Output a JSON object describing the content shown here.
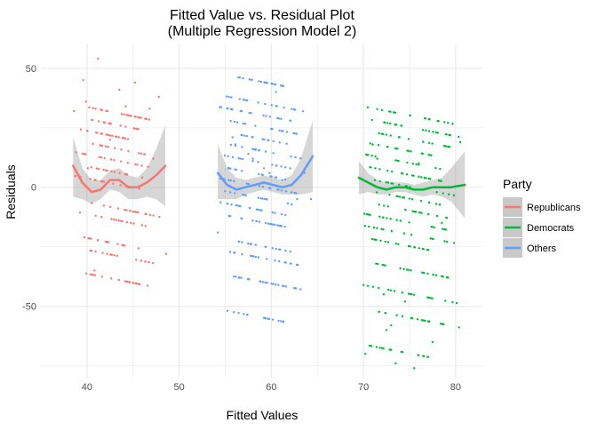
{
  "chart_data": {
    "type": "scatter",
    "title": "Fitted Value vs. Residual Plot",
    "subtitle": "(Multiple Regression Model 2)",
    "xlabel": "Fitted Values",
    "ylabel": "Residuals",
    "xlim": [
      35,
      83
    ],
    "ylim": [
      -80,
      60
    ],
    "x_ticks": [
      40,
      50,
      60,
      70,
      80
    ],
    "x_tick_labels": [
      "40",
      "50",
      "60",
      "70",
      "80"
    ],
    "y_ticks": [
      -50,
      0,
      50
    ],
    "y_tick_labels": [
      "-50",
      "0",
      "50"
    ],
    "grid": true,
    "legend": {
      "title": "Party",
      "position": "right"
    },
    "series": [
      {
        "name": "Republicans",
        "color": "#F8766D",
        "x_range": [
          38.5,
          48.5
        ],
        "band_intercepts": [
          -39,
          -29,
          -24,
          -14,
          -9,
          1,
          6,
          11,
          16,
          21,
          26,
          31
        ],
        "band_slope": -0.78,
        "extra_points": [
          [
            41.2,
            54
          ],
          [
            39.6,
            45
          ],
          [
            43.5,
            41
          ],
          [
            45.2,
            44
          ],
          [
            39.9,
            36
          ],
          [
            47.8,
            38
          ],
          [
            38.6,
            32
          ],
          [
            44.2,
            34
          ],
          [
            46.8,
            33
          ],
          [
            48.6,
            -28
          ],
          [
            40.8,
            -35
          ],
          [
            42.5,
            20
          ],
          [
            47.2,
            12
          ],
          [
            40.1,
            8
          ]
        ],
        "smooth": [
          [
            38.5,
            9
          ],
          [
            39.5,
            2
          ],
          [
            40.5,
            -2
          ],
          [
            41.5,
            -1
          ],
          [
            42.5,
            3
          ],
          [
            43.5,
            3
          ],
          [
            44.5,
            0
          ],
          [
            45.5,
            0
          ],
          [
            46.5,
            2
          ],
          [
            47.5,
            5
          ],
          [
            48.5,
            9
          ]
        ],
        "band": [
          [
            38.5,
            21,
            -4
          ],
          [
            39.5,
            8,
            -5
          ],
          [
            40.5,
            3,
            -7
          ],
          [
            41.5,
            3,
            -5
          ],
          [
            42.5,
            7,
            -1
          ],
          [
            43.5,
            8,
            -2
          ],
          [
            44.5,
            5,
            -5
          ],
          [
            45.5,
            4,
            -5
          ],
          [
            46.5,
            8,
            -4
          ],
          [
            47.5,
            16,
            -5
          ],
          [
            48.5,
            26,
            -8
          ]
        ]
      },
      {
        "name": "Democrats",
        "color": "#00BA38",
        "x_range": [
          69.5,
          81
        ],
        "band_intercepts": [
          -70,
          -55,
          -45,
          -35,
          -25,
          -20,
          -15,
          -10,
          -5,
          0,
          5,
          10,
          15,
          20,
          25,
          30
        ],
        "band_slope": -0.75,
        "extra_points": [
          [
            70.2,
            -70
          ],
          [
            73.5,
            -74
          ],
          [
            75.5,
            -76
          ],
          [
            72.5,
            -60
          ],
          [
            77.5,
            -65
          ],
          [
            73,
            -58
          ],
          [
            71,
            18
          ],
          [
            76,
            10
          ],
          [
            78.5,
            -15
          ],
          [
            80.5,
            19
          ],
          [
            74.5,
            -48
          ],
          [
            72.2,
            -45
          ],
          [
            71.5,
            12
          ]
        ],
        "smooth": [
          [
            69.5,
            4
          ],
          [
            70.5,
            2
          ],
          [
            71.5,
            0
          ],
          [
            72.5,
            -1
          ],
          [
            73.5,
            0
          ],
          [
            74.5,
            0
          ],
          [
            75.5,
            -1
          ],
          [
            76.5,
            -1
          ],
          [
            77.5,
            0
          ],
          [
            78.5,
            0
          ],
          [
            79.5,
            0
          ],
          [
            81,
            1
          ]
        ],
        "band": [
          [
            69.5,
            11,
            -3
          ],
          [
            70.5,
            6,
            -2
          ],
          [
            71.5,
            3,
            -3
          ],
          [
            72.5,
            2,
            -3
          ],
          [
            73.5,
            2,
            -2
          ],
          [
            74.5,
            2,
            -2
          ],
          [
            75.5,
            1,
            -3
          ],
          [
            76.5,
            2,
            -4
          ],
          [
            77.5,
            3,
            -3
          ],
          [
            78.5,
            4,
            -4
          ],
          [
            79.5,
            8,
            -6
          ],
          [
            81,
            15,
            -13
          ]
        ]
      },
      {
        "name": "Others",
        "color": "#619CFF",
        "x_range": [
          54.2,
          64.5
        ],
        "band_intercepts": [
          -55,
          -40,
          -30,
          -25,
          -15,
          -10,
          -5,
          0,
          5,
          10,
          15,
          20,
          25,
          30,
          35,
          44
        ],
        "band_slope": -0.75,
        "extra_points": [
          [
            55.8,
            21
          ],
          [
            56.1,
            18
          ],
          [
            58.3,
            16
          ],
          [
            57.5,
            14
          ],
          [
            59.8,
            6
          ],
          [
            61.2,
            3
          ],
          [
            63.6,
            6
          ],
          [
            54.2,
            -19
          ],
          [
            62.8,
            -5
          ],
          [
            59.2,
            8
          ],
          [
            56.5,
            -38
          ],
          [
            58,
            12
          ],
          [
            60.5,
            40
          ],
          [
            64.3,
            -5
          ]
        ],
        "smooth": [
          [
            54.2,
            6
          ],
          [
            55.2,
            1
          ],
          [
            56.2,
            -1
          ],
          [
            57.2,
            0
          ],
          [
            58.2,
            1
          ],
          [
            59.2,
            2
          ],
          [
            60.2,
            1
          ],
          [
            61.2,
            0
          ],
          [
            62.2,
            1
          ],
          [
            63.2,
            5
          ],
          [
            64.5,
            13
          ]
        ],
        "band": [
          [
            54.2,
            18,
            -5
          ],
          [
            55.2,
            8,
            -5
          ],
          [
            56.2,
            4,
            -5
          ],
          [
            57.2,
            3,
            -3
          ],
          [
            58.2,
            4,
            -2
          ],
          [
            59.2,
            5,
            -1
          ],
          [
            60.2,
            4,
            -2
          ],
          [
            61.2,
            3,
            -3
          ],
          [
            62.2,
            5,
            -3
          ],
          [
            63.2,
            12,
            -3
          ],
          [
            64.5,
            28,
            -2
          ]
        ]
      }
    ]
  }
}
